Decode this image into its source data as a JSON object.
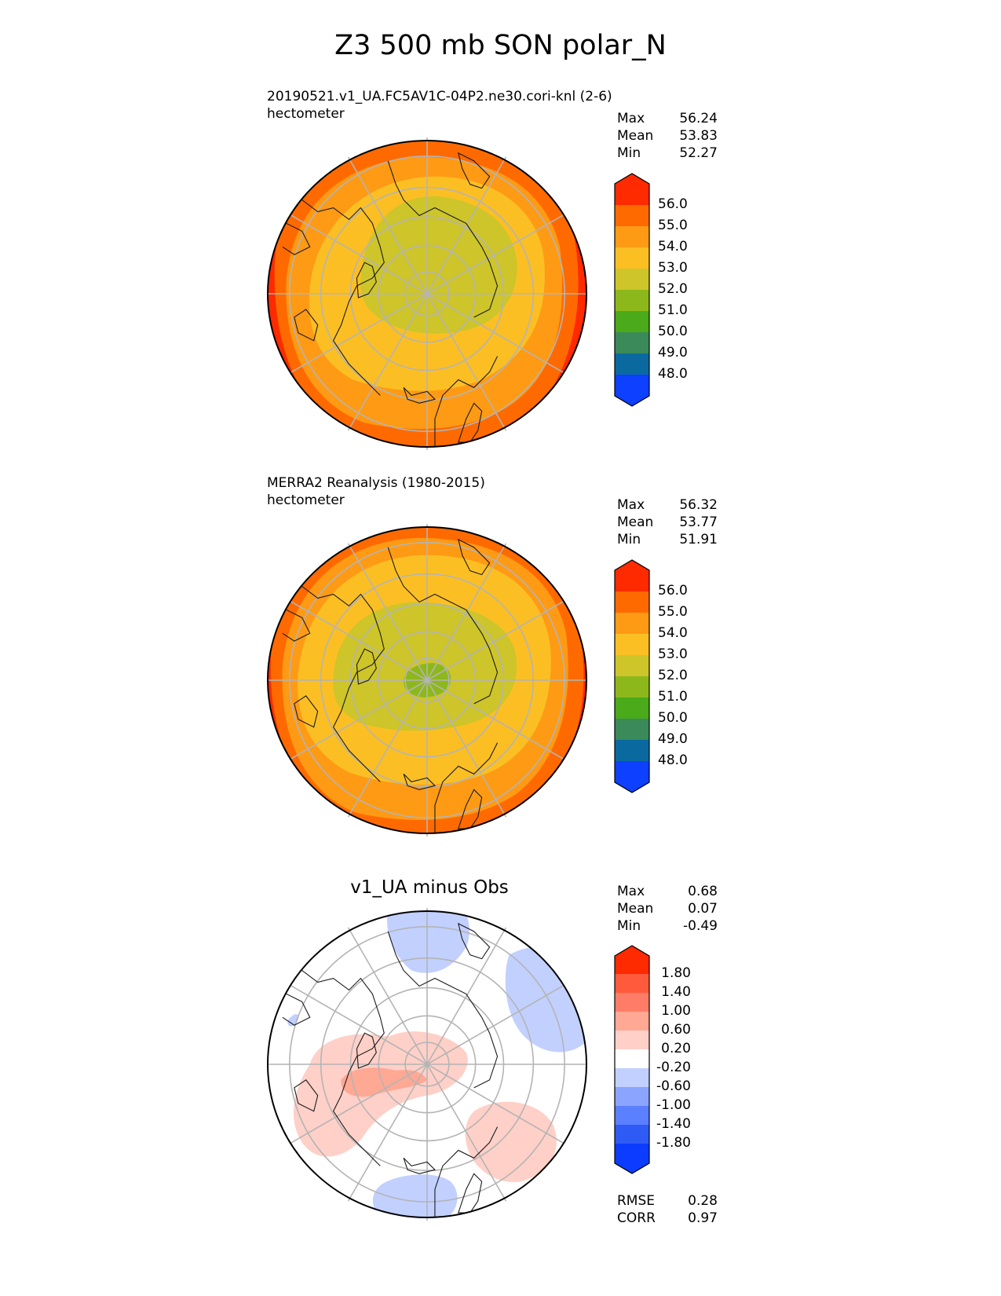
{
  "title": "Z3 500 mb SON polar_N",
  "panels": [
    {
      "subtitle": "20190521.v1_UA.FC5AV1C-04P2.ne30.cori-knl (2-6)",
      "units": "hectometer",
      "stats": [
        {
          "label": "Max",
          "value": "56.24"
        },
        {
          "label": "Mean",
          "value": "53.83"
        },
        {
          "label": "Min",
          "value": "52.27"
        }
      ],
      "colorbar_ticks": [
        "56.0",
        "55.0",
        "54.0",
        "53.0",
        "52.0",
        "51.0",
        "50.0",
        "49.0",
        "48.0"
      ]
    },
    {
      "subtitle": "MERRA2 Reanalysis (1980-2015)",
      "units": "hectometer",
      "stats": [
        {
          "label": "Max",
          "value": "56.32"
        },
        {
          "label": "Mean",
          "value": "53.77"
        },
        {
          "label": "Min",
          "value": "51.91"
        }
      ],
      "colorbar_ticks": [
        "56.0",
        "55.0",
        "54.0",
        "53.0",
        "52.0",
        "51.0",
        "50.0",
        "49.0",
        "48.0"
      ]
    },
    {
      "subtitle": "v1_UA minus Obs",
      "stats": [
        {
          "label": "Max",
          "value": "0.68"
        },
        {
          "label": "Mean",
          "value": "0.07"
        },
        {
          "label": "Min",
          "value": "-0.49"
        }
      ],
      "colorbar_ticks": [
        "1.80",
        "1.40",
        "1.00",
        "0.60",
        "0.20",
        "-0.20",
        "-0.60",
        "-1.00",
        "-1.40",
        "-1.80"
      ],
      "metrics": [
        {
          "label": "RMSE",
          "value": "0.28"
        },
        {
          "label": "CORR",
          "value": "0.97"
        }
      ]
    }
  ],
  "colors": {
    "field_scale": [
      "#0d40ff",
      "#0a6aa0",
      "#3a8a5a",
      "#4aaa1a",
      "#8db81c",
      "#cdc52a",
      "#fbbf24",
      "#ff9a14",
      "#ff6a00",
      "#ff2a00"
    ],
    "diff_scale": [
      "#0b3cff",
      "#2f5bf5",
      "#5a80ff",
      "#8aa4ff",
      "#c2d0ff",
      "#ffffff",
      "#ffd0c8",
      "#ffa894",
      "#ff7d66",
      "#ff5a3c",
      "#ff2a00"
    ],
    "grid": "#b4b4b4",
    "coast": "#1a1a1a"
  }
}
